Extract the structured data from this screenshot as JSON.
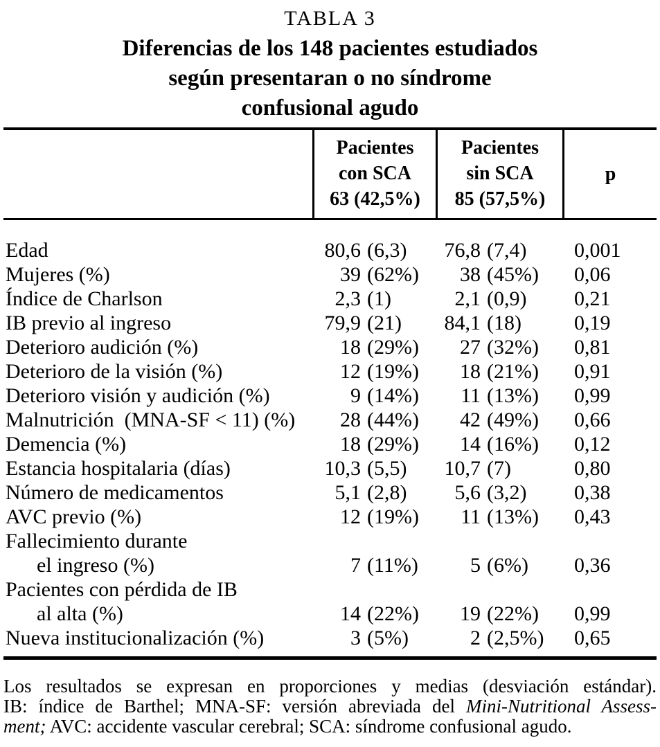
{
  "page": {
    "kicker": "TABLA 3",
    "title_lines": [
      "Diferencias de los 148 pacientes estudiados",
      "según presentaran o no síndrome",
      "confusional agudo"
    ]
  },
  "table": {
    "header": {
      "col1": "",
      "con_sca_lines": [
        "Pacientes",
        "con SCA",
        "63 (42,5%)"
      ],
      "sin_sca_lines": [
        "Pacientes",
        "sin SCA",
        "85 (57,5%)"
      ],
      "p_label": "p"
    },
    "rows": [
      {
        "label": "Edad",
        "indent": false,
        "con_num": "80,6",
        "con_paren": "(6,3)",
        "sin_num": "76,8",
        "sin_paren": "(7,4)",
        "p": "0,001"
      },
      {
        "label": "Mujeres (%)",
        "indent": false,
        "con_num": "39",
        "con_paren": "(62%)",
        "sin_num": "38",
        "sin_paren": "(45%)",
        "p": "0,06"
      },
      {
        "label": "Índice de Charlson",
        "indent": false,
        "con_num": "2,3",
        "con_paren": "(1)",
        "sin_num": "2,1",
        "sin_paren": "(0,9)",
        "p": "0,21"
      },
      {
        "label": "IB previo al ingreso",
        "indent": false,
        "con_num": "79,9",
        "con_paren": "(21)",
        "sin_num": "84,1",
        "sin_paren": "(18)",
        "p": "0,19"
      },
      {
        "label": "Deterioro audición (%)",
        "indent": false,
        "con_num": "18",
        "con_paren": "(29%)",
        "sin_num": "27",
        "sin_paren": "(32%)",
        "p": "0,81"
      },
      {
        "label": "Deterioro de la visión (%)",
        "indent": false,
        "con_num": "12",
        "con_paren": "(19%)",
        "sin_num": "18",
        "sin_paren": "(21%)",
        "p": "0,91"
      },
      {
        "label": "Deterioro visión y audición (%)",
        "indent": false,
        "con_num": "9",
        "con_paren": "(14%)",
        "sin_num": "11",
        "sin_paren": "(13%)",
        "p": "0,99"
      },
      {
        "label": "Malnutrición  (MNA-SF < 11) (%)",
        "indent": false,
        "con_num": "28",
        "con_paren": "(44%)",
        "sin_num": "42",
        "sin_paren": "(49%)",
        "p": "0,66"
      },
      {
        "label": "Demencia (%)",
        "indent": false,
        "con_num": "18",
        "con_paren": "(29%)",
        "sin_num": "14",
        "sin_paren": "(16%)",
        "p": "0,12"
      },
      {
        "label": "Estancia hospitalaria (días)",
        "indent": false,
        "con_num": "10,3",
        "con_paren": "(5,5)",
        "sin_num": "10,7",
        "sin_paren": "(7)",
        "p": "0,80"
      },
      {
        "label": "Número de medicamentos",
        "indent": false,
        "con_num": "5,1",
        "con_paren": "(2,8)",
        "sin_num": "5,6",
        "sin_paren": "(3,2)",
        "p": "0,38"
      },
      {
        "label": "AVC previo (%)",
        "indent": false,
        "con_num": "12",
        "con_paren": "(19%)",
        "sin_num": "11",
        "sin_paren": "(13%)",
        "p": "0,43"
      },
      {
        "label": "Fallecimiento durante",
        "indent": false,
        "con_num": "",
        "con_paren": "",
        "sin_num": "",
        "sin_paren": "",
        "p": ""
      },
      {
        "label": "el ingreso (%)",
        "indent": true,
        "con_num": "7",
        "con_paren": "(11%)",
        "sin_num": "5",
        "sin_paren": "(6%)",
        "p": "0,36"
      },
      {
        "label": "Pacientes con pérdida de IB",
        "indent": false,
        "con_num": "",
        "con_paren": "",
        "sin_num": "",
        "sin_paren": "",
        "p": ""
      },
      {
        "label": "al alta (%)",
        "indent": true,
        "con_num": "14",
        "con_paren": "(22%)",
        "sin_num": "19",
        "sin_paren": "(22%)",
        "p": "0,99"
      },
      {
        "label": "Nueva institucionalización (%)",
        "indent": false,
        "con_num": "3",
        "con_paren": "(5%)",
        "sin_num": "2",
        "sin_paren": "(2,5%)",
        "p": "0,65"
      }
    ]
  },
  "footnote": {
    "lines": [
      [
        {
          "t": "Los resultados se expresan en proporciones y medias (desviación estándar).",
          "i": false
        }
      ],
      [
        {
          "t": "IB: índice de Barthel; MNA-SF: versión abreviada del ",
          "i": false
        },
        {
          "t": "Mini-Nutritional Assess-",
          "i": true
        }
      ],
      [
        {
          "t": "ment;",
          "i": true
        },
        {
          "t": " AVC: accidente vascular cerebral; SCA: síndrome confusional agudo.",
          "i": false
        }
      ]
    ]
  }
}
